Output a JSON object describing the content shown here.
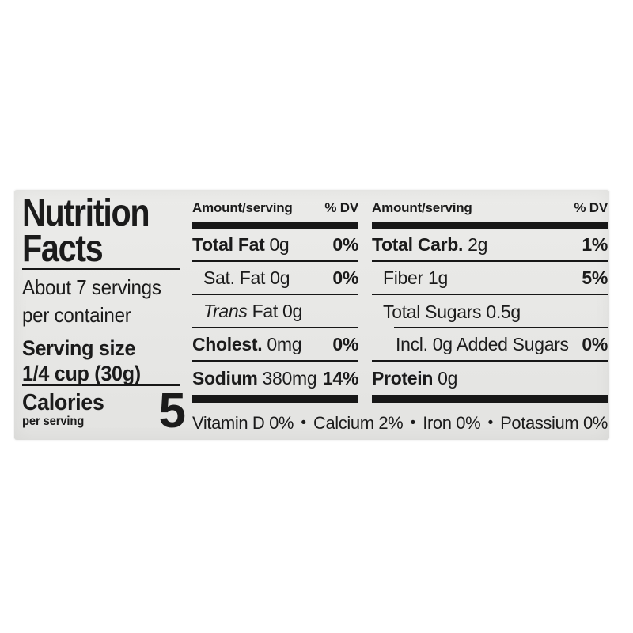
{
  "label": {
    "background_color": "#e8e8e6",
    "text_color": "#1b1b1b",
    "title_line1": "Nutrition",
    "title_line2": "Facts",
    "servings_line1": "About 7 servings",
    "servings_line2": "per container",
    "serving_size_label": "Serving size",
    "serving_size_value": "1/4 cup (30g)",
    "calories_label": "Calories",
    "calories_sublabel": "per serving",
    "calories_value": "5",
    "header": {
      "amount": "Amount/serving",
      "dv": "% DV"
    },
    "column1": {
      "rows": [
        {
          "bold": "Total Fat",
          "plain": "0g",
          "dv": "0%"
        },
        {
          "bold": "",
          "plain": "Sat. Fat 0g",
          "dv": "0%"
        },
        {
          "italic": "Trans",
          "plain": "Fat 0g",
          "dv": ""
        },
        {
          "bold": "Cholest.",
          "plain": "0mg",
          "dv": "0%"
        },
        {
          "bold": "Sodium",
          "plain": "380mg",
          "dv": "14%"
        }
      ]
    },
    "column2": {
      "rows": [
        {
          "bold": "Total Carb.",
          "plain": "2g",
          "dv": "1%"
        },
        {
          "bold": "",
          "plain": "Fiber 1g",
          "dv": "5%"
        },
        {
          "bold": "",
          "plain": "Total Sugars 0.5g",
          "dv": ""
        },
        {
          "bold": "",
          "plain": "Incl. 0g Added Sugars",
          "dv": "0%"
        },
        {
          "bold": "Protein",
          "plain": "0g",
          "dv": ""
        }
      ]
    },
    "micronutrients": {
      "items": [
        "Vitamin D 0%",
        "Calcium 2%",
        "Iron 0%",
        "Potassium 0%"
      ],
      "separator": "•"
    }
  }
}
